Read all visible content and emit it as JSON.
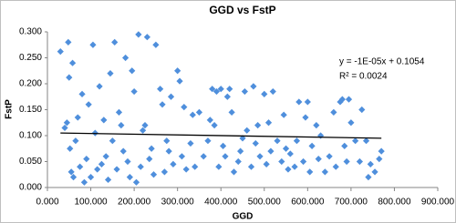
{
  "chart_data": {
    "type": "scatter",
    "title": "GGD vs FstP",
    "x_label": "GGD",
    "y_label": "FstP",
    "color": "#4f8fdc",
    "grid": false,
    "xlim": [
      0,
      900
    ],
    "ylim": [
      0,
      0.3
    ],
    "xticks": [
      {
        "value": 0,
        "label": "0.000"
      },
      {
        "value": 100,
        "label": "100.000"
      },
      {
        "value": 200,
        "label": "200.000"
      },
      {
        "value": 300,
        "label": "300.000"
      },
      {
        "value": 400,
        "label": "400.000"
      },
      {
        "value": 500,
        "label": "500.000"
      },
      {
        "value": 600,
        "label": "600.000"
      },
      {
        "value": 700,
        "label": "700.000"
      },
      {
        "value": 800,
        "label": "800.000"
      },
      {
        "value": 900,
        "label": "900.000"
      }
    ],
    "yticks": [
      {
        "value": 0,
        "label": "0.000"
      },
      {
        "value": 0.05,
        "label": "0.050"
      },
      {
        "value": 0.1,
        "label": "0.100"
      },
      {
        "value": 0.15,
        "label": "0.150"
      },
      {
        "value": 0.2,
        "label": "0.200"
      },
      {
        "value": 0.25,
        "label": "0.250"
      },
      {
        "value": 0.3,
        "label": "0.300"
      }
    ],
    "x": [
      30,
      40,
      45,
      48,
      50,
      52,
      55,
      58,
      60,
      65,
      70,
      75,
      80,
      85,
      90,
      95,
      100,
      105,
      110,
      115,
      120,
      125,
      130,
      135,
      140,
      145,
      150,
      155,
      160,
      165,
      170,
      175,
      180,
      185,
      190,
      195,
      200,
      205,
      210,
      215,
      220,
      225,
      230,
      235,
      240,
      245,
      250,
      260,
      265,
      270,
      275,
      280,
      285,
      290,
      300,
      305,
      310,
      315,
      320,
      330,
      335,
      340,
      350,
      360,
      370,
      375,
      380,
      385,
      390,
      395,
      400,
      405,
      410,
      415,
      420,
      425,
      430,
      440,
      445,
      450,
      455,
      460,
      470,
      475,
      480,
      485,
      490,
      500,
      505,
      510,
      515,
      520,
      530,
      540,
      545,
      550,
      555,
      560,
      570,
      575,
      580,
      590,
      595,
      600,
      605,
      610,
      620,
      625,
      630,
      640,
      650,
      660,
      665,
      675,
      680,
      685,
      690,
      695,
      700,
      710,
      720,
      725,
      735,
      740,
      745,
      755,
      765,
      770
    ],
    "values": [
      0.262,
      0.115,
      0.125,
      0.28,
      0.212,
      0.075,
      0.03,
      0.24,
      0.02,
      0.09,
      0.135,
      0.04,
      0.18,
      0.01,
      0.055,
      0.16,
      0.02,
      0.275,
      0.105,
      0.035,
      0.195,
      0.045,
      0.13,
      0.06,
      0.015,
      0.22,
      0.09,
      0.28,
      0.035,
      0.145,
      0.12,
      0.07,
      0.25,
      0.05,
      0.02,
      0.225,
      0.185,
      0.01,
      0.295,
      0.04,
      0.11,
      0.12,
      0.29,
      0.055,
      0.075,
      0.025,
      0.275,
      0.19,
      0.16,
      0.03,
      0.09,
      0.07,
      0.175,
      0.045,
      0.225,
      0.205,
      0.06,
      0.155,
      0.035,
      0.085,
      0.14,
      0.04,
      0.145,
      0.06,
      0.09,
      0.13,
      0.19,
      0.12,
      0.185,
      0.04,
      0.19,
      0.08,
      0.06,
      0.175,
      0.19,
      0.145,
      0.03,
      0.05,
      0.07,
      0.095,
      0.185,
      0.11,
      0.04,
      0.195,
      0.085,
      0.12,
      0.06,
      0.18,
      0.045,
      0.125,
      0.07,
      0.185,
      0.09,
      0.05,
      0.14,
      0.075,
      0.035,
      0.065,
      0.04,
      0.09,
      0.165,
      0.05,
      0.135,
      0.165,
      0.03,
      0.08,
      0.12,
      0.055,
      0.1,
      0.03,
      0.06,
      0.145,
      0.04,
      0.165,
      0.17,
      0.08,
      0.05,
      0.17,
      0.125,
      0.09,
      0.05,
      0.15,
      0.09,
      0.02,
      0.045,
      0.03,
      0.055,
      0.07
    ],
    "trendline": {
      "x": [
        30,
        770
      ],
      "y": [
        0.105,
        0.095
      ],
      "color": "#000000"
    },
    "annotations": [
      "y = -1E-05x + 0.1054",
      "R² = 0.0024"
    ]
  }
}
